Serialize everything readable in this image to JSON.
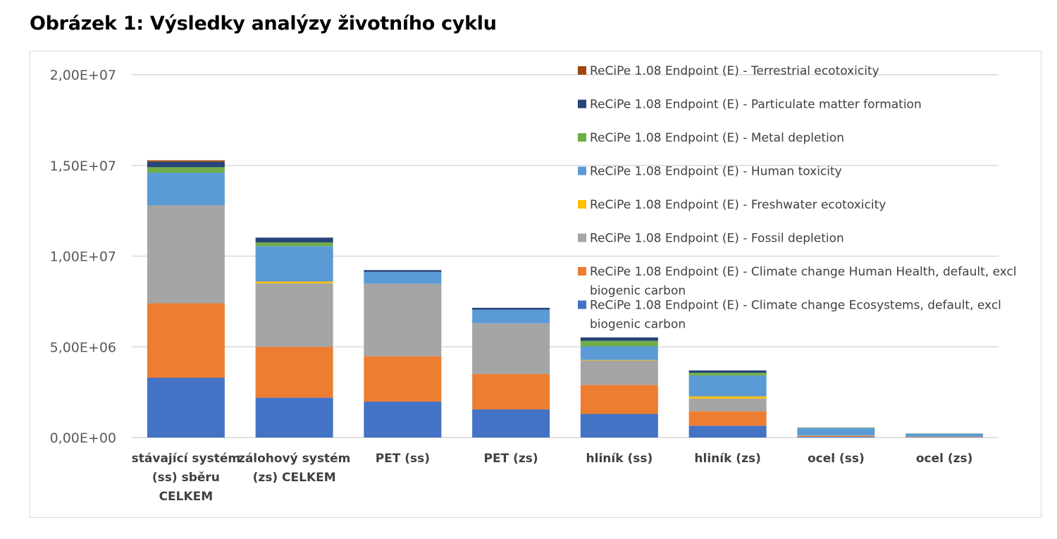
{
  "page": {
    "title": "Obrázek 1: Výsledky analýzy životního cyklu"
  },
  "chart_data": {
    "type": "bar",
    "stacked": true,
    "categories": [
      [
        "stávající systém",
        "(ss) sběru",
        "CELKEM"
      ],
      [
        "zálohový systém",
        "(zs) CELKEM"
      ],
      [
        "PET (ss)"
      ],
      [
        "PET (zs)"
      ],
      [
        "hliník (ss)"
      ],
      [
        "hliník (zs)"
      ],
      [
        "ocel (ss)"
      ],
      [
        "ocel (zs)"
      ]
    ],
    "ylim": [
      0,
      20000000
    ],
    "yticks": [
      {
        "value": 0,
        "label": "0,00E+00"
      },
      {
        "value": 5000000,
        "label": "5,00E+06"
      },
      {
        "value": 10000000,
        "label": "1,00E+07"
      },
      {
        "value": 15000000,
        "label": "1,50E+07"
      },
      {
        "value": 20000000,
        "label": "2,00E+07"
      }
    ],
    "grid": true,
    "legend_position": "top-right",
    "series": [
      {
        "name": "ReCiPe 1.08 Endpoint (E) - Climate change Ecosystems, default, excl biogenic carbon",
        "color": "#4472C4",
        "values": [
          3300000,
          2200000,
          1980000,
          1550000,
          1300000,
          650000,
          40000,
          20000
        ]
      },
      {
        "name": "ReCiPe 1.08 Endpoint (E) - Climate change Human Health, default, excl biogenic carbon",
        "color": "#ED7D31",
        "values": [
          4100000,
          2800000,
          2500000,
          1950000,
          1600000,
          800000,
          50000,
          25000
        ]
      },
      {
        "name": "ReCiPe 1.08 Endpoint (E) - Fossil depletion",
        "color": "#A5A5A5",
        "values": [
          5400000,
          3500000,
          4000000,
          2800000,
          1350000,
          700000,
          30000,
          15000
        ]
      },
      {
        "name": "ReCiPe 1.08 Endpoint (E) - Freshwater ecotoxicity",
        "color": "#FFC000",
        "values": [
          0,
          100000,
          0,
          0,
          30000,
          120000,
          0,
          0
        ]
      },
      {
        "name": "ReCiPe 1.08 Endpoint (E) - Human toxicity",
        "color": "#5B9BD5",
        "values": [
          1800000,
          1950000,
          650000,
          750000,
          750000,
          1150000,
          400000,
          150000
        ]
      },
      {
        "name": "ReCiPe 1.08 Endpoint (E) - Metal depletion",
        "color": "#70AD47",
        "values": [
          300000,
          200000,
          0,
          0,
          300000,
          150000,
          20000,
          10000
        ]
      },
      {
        "name": "ReCiPe 1.08 Endpoint (E) - Particulate matter formation",
        "color": "#264478",
        "values": [
          300000,
          270000,
          100000,
          100000,
          190000,
          130000,
          10000,
          5000
        ]
      },
      {
        "name": "ReCiPe 1.08 Endpoint (E) - Terrestrial ecotoxicity",
        "color": "#9E480E",
        "values": [
          80000,
          0,
          0,
          0,
          0,
          0,
          0,
          0
        ]
      }
    ],
    "legend_lines": [
      [
        "ReCiPe 1.08 Endpoint (E) - Terrestrial ecotoxicity"
      ],
      [
        "ReCiPe 1.08 Endpoint (E) - Particulate matter formation"
      ],
      [
        "ReCiPe 1.08 Endpoint (E) - Metal depletion"
      ],
      [
        "ReCiPe 1.08 Endpoint (E) - Human toxicity"
      ],
      [
        "ReCiPe 1.08 Endpoint (E) - Freshwater ecotoxicity"
      ],
      [
        "ReCiPe 1.08 Endpoint (E) - Fossil depletion"
      ],
      [
        "ReCiPe 1.08 Endpoint (E) - Climate change Human Health, default, excl",
        "biogenic carbon"
      ],
      [
        "ReCiPe 1.08 Endpoint (E) - Climate change Ecosystems, default, excl",
        "biogenic carbon"
      ]
    ]
  }
}
